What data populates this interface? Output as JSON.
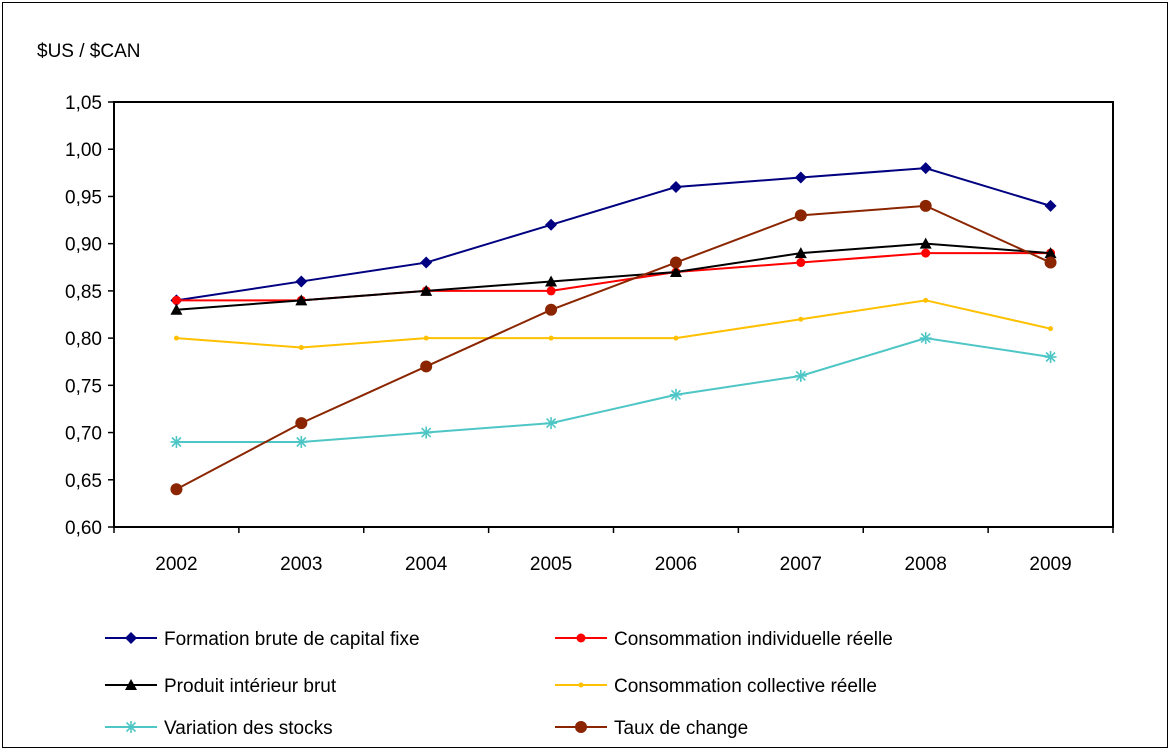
{
  "chart_data": {
    "type": "line",
    "ylabel": "$US / $CAN",
    "x": [
      "2002",
      "2003",
      "2004",
      "2005",
      "2006",
      "2007",
      "2008",
      "2009"
    ],
    "ylim": [
      0.6,
      1.05
    ],
    "yticks": [
      "0,60",
      "0,65",
      "0,70",
      "0,75",
      "0,80",
      "0,85",
      "0,90",
      "0,95",
      "1,00",
      "1,05"
    ],
    "grid": false,
    "legend_position": "bottom",
    "series": [
      {
        "name": "Formation brute de capital fixe",
        "color": "#000080",
        "marker": "diamond",
        "values": [
          0.84,
          0.86,
          0.88,
          0.92,
          0.96,
          0.97,
          0.98,
          0.94
        ]
      },
      {
        "name": "Consommation individuelle réelle",
        "color": "#ff0000",
        "marker": "circle-small",
        "values": [
          0.84,
          0.84,
          0.85,
          0.85,
          0.87,
          0.88,
          0.89,
          0.89
        ]
      },
      {
        "name": "Produit intérieur brut",
        "color": "#000000",
        "marker": "triangle",
        "values": [
          0.83,
          0.84,
          0.85,
          0.86,
          0.87,
          0.89,
          0.9,
          0.89
        ]
      },
      {
        "name": "Consommation collective réelle",
        "color": "#ffc000",
        "marker": "dot",
        "values": [
          0.8,
          0.79,
          0.8,
          0.8,
          0.8,
          0.82,
          0.84,
          0.81
        ]
      },
      {
        "name": "Variation des stocks",
        "color": "#4fc6c6",
        "marker": "asterisk",
        "values": [
          0.69,
          0.69,
          0.7,
          0.71,
          0.74,
          0.76,
          0.8,
          0.78
        ]
      },
      {
        "name": "Taux de change",
        "color": "#8b2500",
        "marker": "circle-large",
        "values": [
          0.64,
          0.71,
          0.77,
          0.83,
          0.88,
          0.93,
          0.94,
          0.88
        ]
      }
    ]
  }
}
